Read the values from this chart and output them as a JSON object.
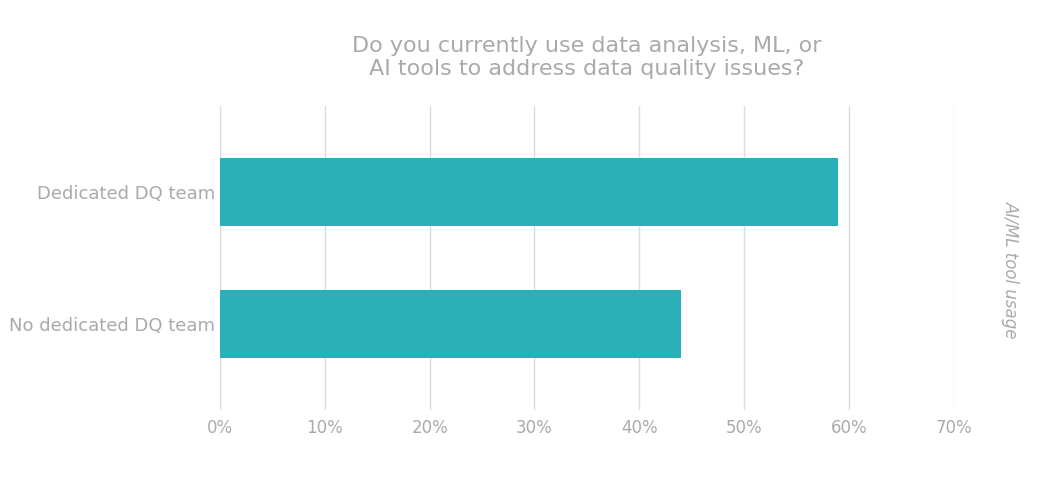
{
  "title": "Do you currently use data analysis, ML, or\nAI tools to address data quality issues?",
  "categories": [
    "No dedicated DQ team",
    "Dedicated DQ team"
  ],
  "values": [
    44,
    59
  ],
  "bar_color": "#2ab0b8",
  "ylabel_right": "AI/ML tool usage",
  "xlim": [
    0,
    70
  ],
  "xticks": [
    0,
    10,
    20,
    30,
    40,
    50,
    60,
    70
  ],
  "xtick_labels": [
    "0%",
    "10%",
    "20%",
    "30%",
    "40%",
    "50%",
    "60%",
    "70%"
  ],
  "background_color": "#ffffff",
  "title_color": "#aaaaaa",
  "tick_label_color": "#aaaaaa",
  "ylabel_right_color": "#aaaaaa",
  "category_label_color": "#aaaaaa",
  "title_fontsize": 16,
  "tick_fontsize": 12,
  "category_fontsize": 13,
  "ylabel_right_fontsize": 12,
  "bar_height": 0.52,
  "grid_color": "#dddddd"
}
